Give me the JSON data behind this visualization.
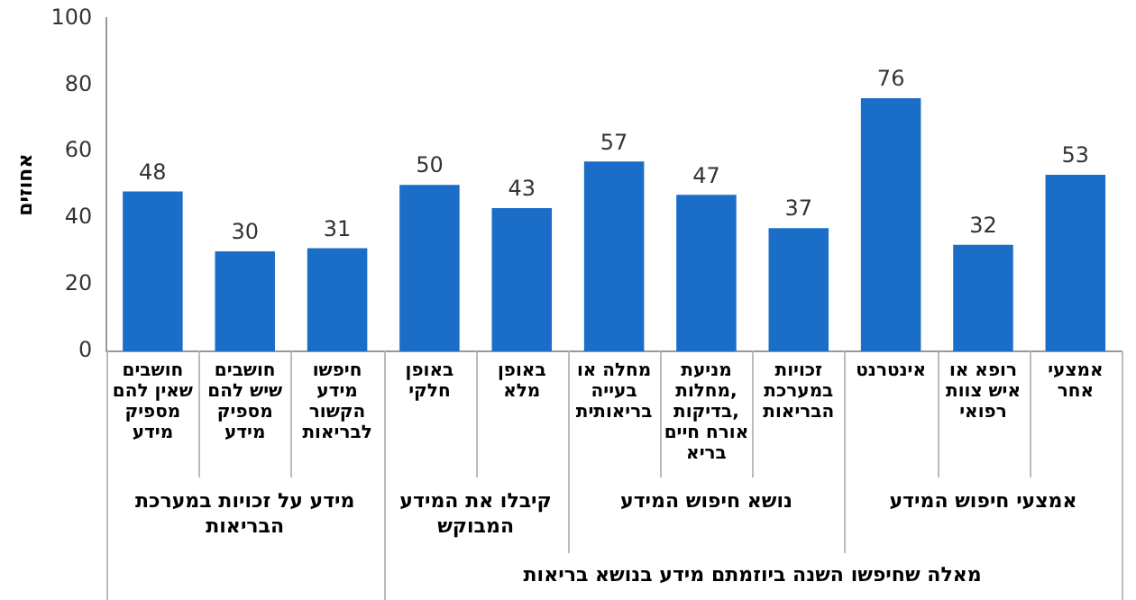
{
  "chart_data": {
    "type": "bar",
    "ylabel": "אחוזים",
    "categories": [
      "חושבים שאין להם מספיק מידע",
      "חושבים שיש להם מספיק מידע",
      "חיפשו מידע הקשור לבריאות",
      "באופן חלקי",
      "באופן מלא",
      "מחלה או בעייה בריאותית",
      "מניעת מחלות, בדיקות, אורח חיים בריא",
      "זכויות במערכת הבריאות",
      "אינטרנט",
      "רופא או איש צוות רפואי",
      "אמצעי אחר"
    ],
    "values": [
      48,
      30,
      31,
      50,
      43,
      57,
      47,
      37,
      76,
      32,
      53
    ],
    "color": "#1a6ec8",
    "ylim": [
      0,
      100
    ],
    "yticks": [
      0,
      20,
      40,
      60,
      80,
      100
    ],
    "grid": false,
    "data_labels": true,
    "annotations": [
      "מידע על זכויות במערכת הבריאות",
      "קיבלו את המידע המבוקש",
      "נושא חיפוש המידע",
      "אמצעי חיפוש המידע",
      "מאלה שחיפשו השנה ביוזמתם מידע בנושא בריאות"
    ]
  }
}
